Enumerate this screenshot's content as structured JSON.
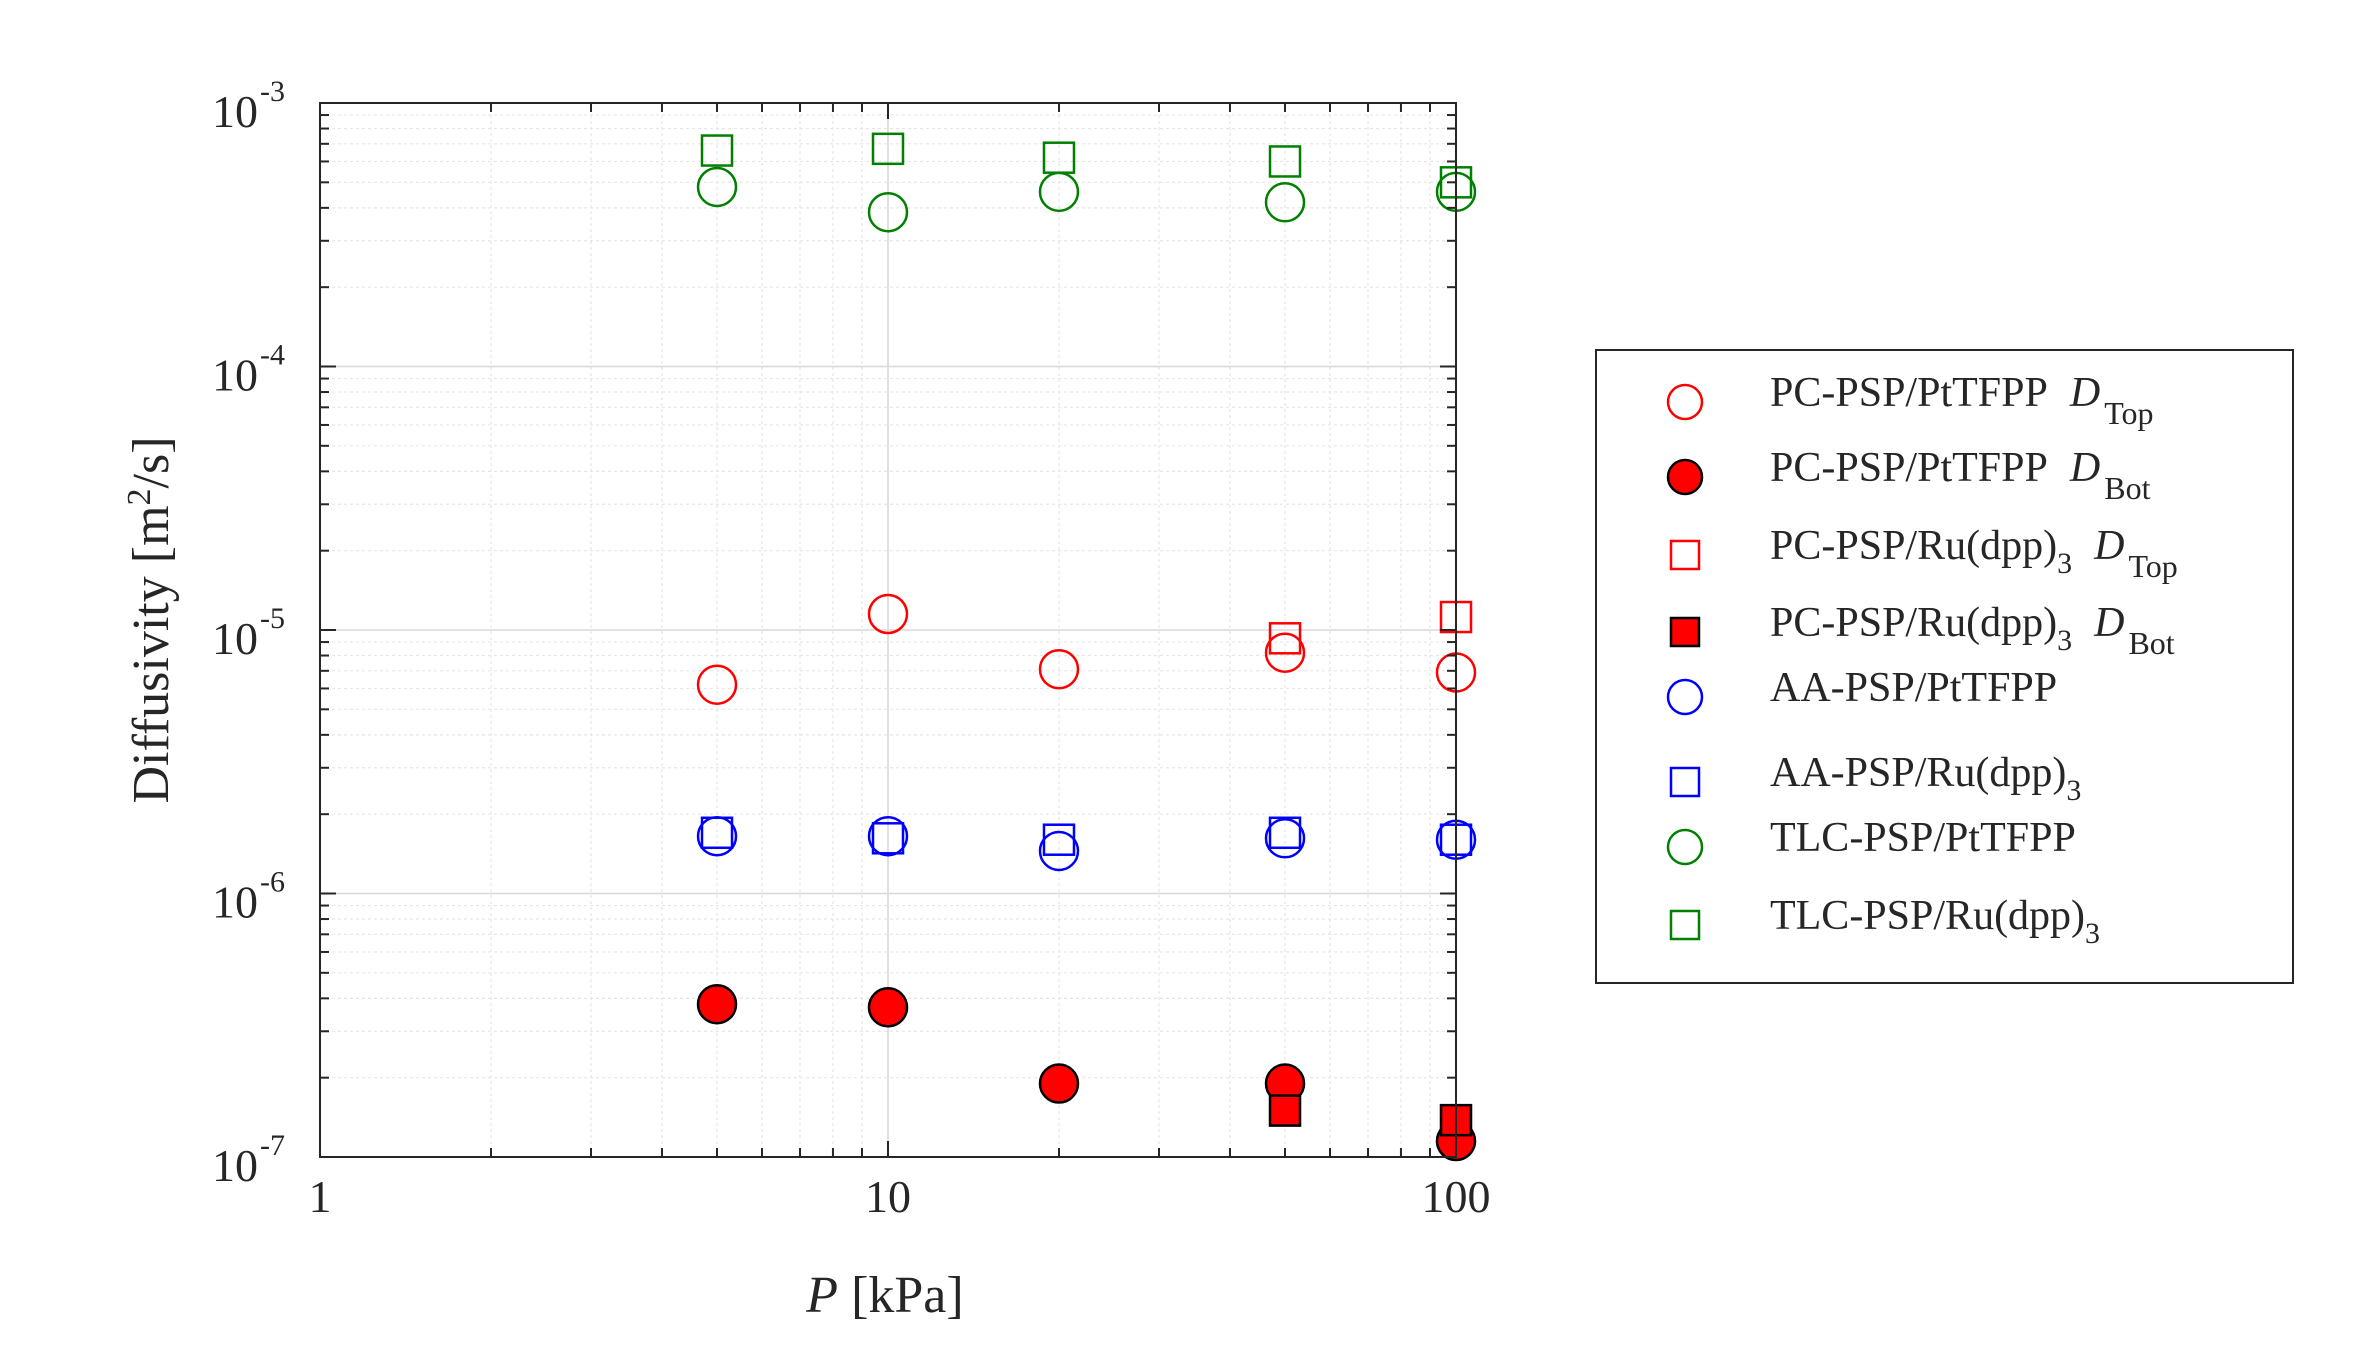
{
  "chart_data": {
    "type": "scatter",
    "x_scale": "log",
    "y_scale": "log",
    "xlim": [
      1,
      100
    ],
    "ylim": [
      1e-07,
      0.001
    ],
    "grid": true,
    "legend_position": "right",
    "x_ticks": [
      {
        "value": 1,
        "label": "1"
      },
      {
        "value": 10,
        "label": "10"
      },
      {
        "value": 100,
        "label": "100"
      }
    ],
    "y_ticks": [
      {
        "value": 1e-07,
        "base": "10",
        "exp": "-7"
      },
      {
        "value": 1e-06,
        "base": "10",
        "exp": "-6"
      },
      {
        "value": 1e-05,
        "base": "10",
        "exp": "-5"
      },
      {
        "value": 0.0001,
        "base": "10",
        "exp": "-4"
      },
      {
        "value": 0.001,
        "base": "10",
        "exp": "-3"
      }
    ],
    "xlabel": {
      "italic": "P",
      "text": " [kPa]"
    },
    "ylabel": {
      "text": "Diffusivity [m",
      "sup": "2",
      "tail": "/s]"
    },
    "series": [
      {
        "name": "PC-PSP/PtTFPP D Top",
        "main": "PC-PSP/PtTFPP",
        "sub": "",
        "d": "D",
        "dsub": "Top",
        "color": "#ff0000",
        "marker": "circle",
        "filled": false,
        "x": [
          5,
          10,
          20,
          50,
          100
        ],
        "y": [
          6.2e-06,
          1.15e-05,
          7.1e-06,
          8.2e-06,
          6.9e-06
        ]
      },
      {
        "name": "PC-PSP/PtTFPP D Bot",
        "main": "PC-PSP/PtTFPP",
        "sub": "",
        "d": "D",
        "dsub": "Bot",
        "color": "#ff0000",
        "marker": "circle",
        "filled": true,
        "x": [
          5,
          10,
          20,
          50,
          100
        ],
        "y": [
          3.8e-07,
          3.7e-07,
          1.9e-07,
          1.9e-07,
          1.15e-07
        ]
      },
      {
        "name": "PC-PSP/Ru(dpp)3 D Top",
        "main": "PC-PSP/Ru(dpp)",
        "sub": "3",
        "d": "D",
        "dsub": "Top",
        "color": "#ff0000",
        "marker": "square",
        "filled": false,
        "x": [
          50,
          100
        ],
        "y": [
          9.3e-06,
          1.12e-05
        ]
      },
      {
        "name": "PC-PSP/Ru(dpp)3 D Bot",
        "main": "PC-PSP/Ru(dpp)",
        "sub": "3",
        "d": "D",
        "dsub": "Bot",
        "color": "#ff0000",
        "marker": "square",
        "filled": true,
        "x": [
          50,
          100
        ],
        "y": [
          1.5e-07,
          1.38e-07
        ]
      },
      {
        "name": "AA-PSP/PtTFPP",
        "main": "AA-PSP/PtTFPP",
        "sub": "",
        "d": "",
        "dsub": "",
        "color": "#0000ff",
        "marker": "circle",
        "filled": false,
        "x": [
          5,
          10,
          20,
          50,
          100
        ],
        "y": [
          1.65e-06,
          1.65e-06,
          1.45e-06,
          1.62e-06,
          1.6e-06
        ]
      },
      {
        "name": "AA-PSP/Ru(dpp)3",
        "main": "AA-PSP/Ru(dpp)",
        "sub": "3",
        "d": "",
        "dsub": "",
        "color": "#0000ff",
        "marker": "square",
        "filled": false,
        "x": [
          5,
          10,
          20,
          50,
          100
        ],
        "y": [
          1.7e-06,
          1.62e-06,
          1.6e-06,
          1.7e-06,
          1.6e-06
        ]
      },
      {
        "name": "TLC-PSP/PtTFPP",
        "main": "TLC-PSP/PtTFPP",
        "sub": "",
        "d": "",
        "dsub": "",
        "color": "#008000",
        "marker": "circle",
        "filled": false,
        "x": [
          5,
          10,
          20,
          50,
          100
        ],
        "y": [
          0.00048,
          0.000385,
          0.00046,
          0.00042,
          0.00046
        ]
      },
      {
        "name": "TLC-PSP/Ru(dpp)3",
        "main": "TLC-PSP/Ru(dpp)",
        "sub": "3",
        "d": "",
        "dsub": "",
        "color": "#008000",
        "marker": "square",
        "filled": false,
        "x": [
          5,
          10,
          20,
          50,
          100
        ],
        "y": [
          0.00066,
          0.00067,
          0.00062,
          0.0006,
          0.0005
        ]
      }
    ]
  }
}
